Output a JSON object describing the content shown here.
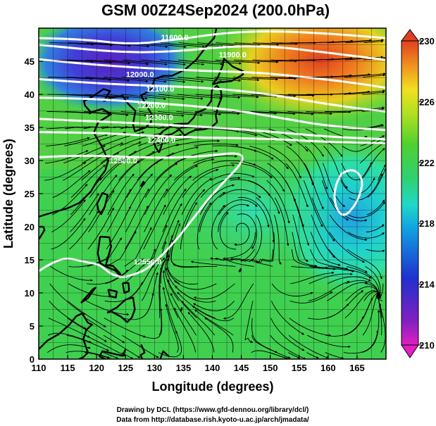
{
  "title": "GSM 00Z24Sep2024 (200.0hPa)",
  "xlabel": "Longitude (degrees)",
  "ylabel": "Latitude  (degrees)",
  "credit_line1": "Drawing by DCL (https://www.gfd-dennou.org/library/dcl/)",
  "credit_line2": "Data from http://database.rish.kyoto-u.ac.jp/arch/jmadata/",
  "map": {
    "lon_range": [
      110,
      170
    ],
    "lat_range": [
      0,
      50
    ],
    "lon_ticks": [
      110,
      115,
      120,
      125,
      130,
      135,
      140,
      145,
      150,
      155,
      160,
      165
    ],
    "lat_ticks": [
      0,
      5,
      10,
      15,
      20,
      25,
      30,
      35,
      40,
      45
    ],
    "grid": true,
    "field": "temperature shading with streamlines and geopotential height contours"
  },
  "colorbar": {
    "ticks": [
      210,
      214,
      218,
      222,
      226,
      230
    ],
    "colors": [
      "#e020c0",
      "#6020c0",
      "#2030d0",
      "#10a0e0",
      "#20d8c8",
      "#30d070",
      "#40d040",
      "#a0e020",
      "#f0e020",
      "#f09020",
      "#e04020"
    ]
  },
  "contours": [
    {
      "label": "11600.0"
    },
    {
      "label": "11900.0"
    },
    {
      "label": "12000.0"
    },
    {
      "label": "12100.0"
    },
    {
      "label": "12200.0"
    },
    {
      "label": "12300.0"
    },
    {
      "label": "12400.0"
    },
    {
      "label": "12500.0"
    },
    {
      "label": "12550.0"
    }
  ],
  "colors": {
    "contour": "#ffffff",
    "coast": "#000000",
    "grid": "#000000",
    "stream": "#000000"
  }
}
